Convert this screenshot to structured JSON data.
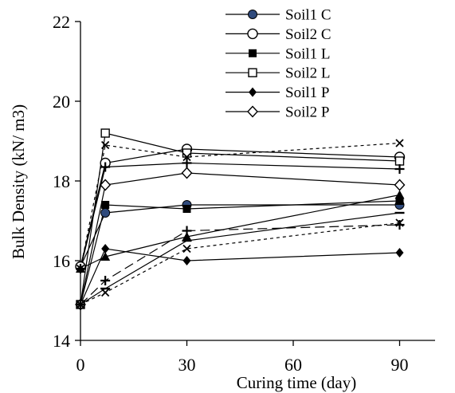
{
  "chart_data": {
    "type": "line",
    "xlabel": "Curing time (day)",
    "ylabel": "Bulk Density  (kN/ m3)",
    "xlim": [
      0,
      100
    ],
    "ylim": [
      14,
      22
    ],
    "x_ticks": [
      0,
      30,
      60,
      90
    ],
    "y_ticks": [
      14,
      16,
      18,
      20,
      22
    ],
    "grid": false,
    "legend_position": "top-right",
    "series": [
      {
        "name": "Soil1 C",
        "marker": "circle-filled",
        "dash": "solid",
        "legend": true,
        "x": [
          0,
          7,
          30,
          90
        ],
        "y": [
          15.85,
          17.2,
          17.4,
          17.4
        ]
      },
      {
        "name": "Soil2 C",
        "marker": "circle-open",
        "dash": "solid",
        "legend": true,
        "x": [
          0,
          7,
          30,
          90
        ],
        "y": [
          15.85,
          18.45,
          18.8,
          18.6
        ]
      },
      {
        "name": "Soil1 L",
        "marker": "square-filled",
        "dash": "solid",
        "legend": true,
        "x": [
          0,
          7,
          30,
          90
        ],
        "y": [
          14.9,
          17.4,
          17.3,
          17.5
        ]
      },
      {
        "name": "Soil2 L",
        "marker": "square-open",
        "dash": "solid",
        "legend": true,
        "x": [
          0,
          7,
          30,
          90
        ],
        "y": [
          14.9,
          19.2,
          18.7,
          18.5
        ]
      },
      {
        "name": "Soil1 P",
        "marker": "diamond-filled",
        "dash": "solid",
        "legend": true,
        "x": [
          0,
          7,
          30,
          90
        ],
        "y": [
          14.9,
          16.3,
          16.0,
          16.2
        ]
      },
      {
        "name": "Soil2 P",
        "marker": "diamond-open",
        "dash": "solid",
        "legend": true,
        "x": [
          0,
          7,
          30,
          90
        ],
        "y": [
          14.9,
          17.9,
          18.2,
          17.9
        ]
      },
      {
        "marker": "x",
        "dash": "dotted",
        "legend": false,
        "x": [
          0,
          7,
          30,
          90
        ],
        "y": [
          15.8,
          18.9,
          18.6,
          18.95
        ]
      },
      {
        "marker": "plus",
        "dash": "solid",
        "legend": false,
        "x": [
          0,
          7,
          30,
          90
        ],
        "y": [
          15.8,
          18.35,
          18.45,
          18.3
        ]
      },
      {
        "marker": "triangle-filled",
        "dash": "solid",
        "legend": false,
        "x": [
          0,
          7,
          30,
          90
        ],
        "y": [
          15.8,
          16.1,
          16.6,
          17.65
        ]
      },
      {
        "marker": "plus",
        "dash": "dashed",
        "legend": false,
        "x": [
          0,
          7,
          30,
          90
        ],
        "y": [
          14.9,
          15.5,
          16.75,
          16.9
        ]
      },
      {
        "marker": "x",
        "dash": "dotted",
        "legend": false,
        "x": [
          0,
          7,
          30,
          90
        ],
        "y": [
          14.9,
          15.2,
          16.3,
          16.95
        ]
      },
      {
        "marker": "dash",
        "dash": "solid",
        "legend": false,
        "x": [
          0,
          7,
          30,
          90
        ],
        "y": [
          14.9,
          15.3,
          16.5,
          17.2
        ]
      }
    ]
  }
}
